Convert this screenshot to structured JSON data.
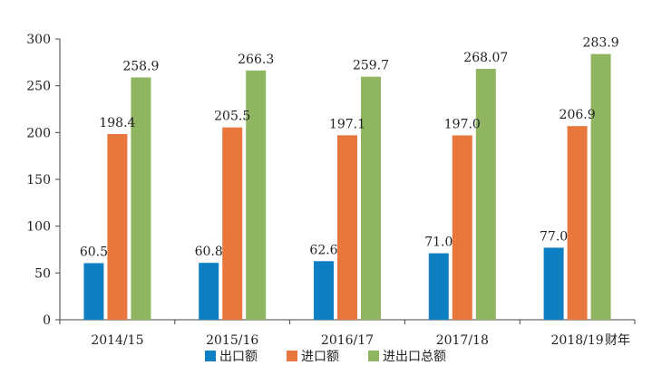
{
  "chart_data": {
    "type": "bar",
    "title": "",
    "xlabel": "财年",
    "ylabel": "",
    "ylim": [
      0,
      300
    ],
    "yticks": [
      0,
      50,
      100,
      150,
      200,
      250,
      300
    ],
    "categories": [
      "2014/15",
      "2015/16",
      "2016/17",
      "2017/18",
      "2018/19"
    ],
    "series": [
      {
        "name": "出口额",
        "color": "#0f7fc4",
        "values": [
          60.5,
          60.8,
          62.6,
          71.0,
          77.0
        ],
        "labels": [
          "60.5",
          "60.8",
          "62.6",
          "71.0",
          "77.0"
        ]
      },
      {
        "name": "进口额",
        "color": "#e8773d",
        "values": [
          198.4,
          205.5,
          197.1,
          197.0,
          206.9
        ],
        "labels": [
          "198.4",
          "205.5",
          "197.1",
          "197.0",
          "206.9"
        ]
      },
      {
        "name": "进出口总额",
        "color": "#8fb560",
        "values": [
          258.9,
          266.3,
          259.7,
          268.07,
          283.9
        ],
        "labels": [
          "258.9",
          "266.3",
          "259.7",
          "268.07",
          "283.9"
        ]
      }
    ],
    "legend_position": "bottom",
    "grid": false
  }
}
